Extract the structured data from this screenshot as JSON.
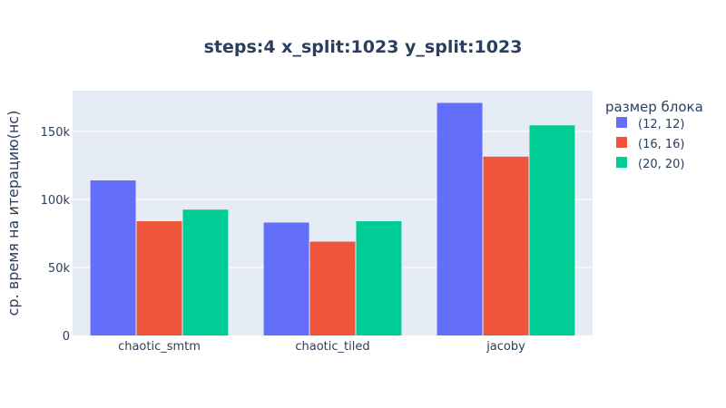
{
  "chart_data": {
    "type": "bar",
    "title": "steps:4 x_split:1023 y_split:1023",
    "xlabel": "",
    "ylabel": "ср. время на итерацию(нс)",
    "categories": [
      "chaotic_smtm",
      "chaotic_tiled",
      "jacoby"
    ],
    "series": [
      {
        "name": "(12, 12)",
        "color": "#636efa",
        "values": [
          114000,
          83000,
          171000
        ]
      },
      {
        "name": "(16, 16)",
        "color": "#ef553b",
        "values": [
          84000,
          69000,
          131500
        ]
      },
      {
        "name": "(20, 20)",
        "color": "#00cc96",
        "values": [
          92500,
          84000,
          154500
        ]
      }
    ],
    "ylim": [
      0,
      180000
    ],
    "yticks": [
      0,
      50000,
      100000,
      150000
    ],
    "ytick_labels": [
      "0",
      "50k",
      "100k",
      "150k"
    ],
    "legend": {
      "title": "размер блока",
      "position": "top-right"
    },
    "grid": true,
    "plot_bg": "#e5ecf6"
  }
}
